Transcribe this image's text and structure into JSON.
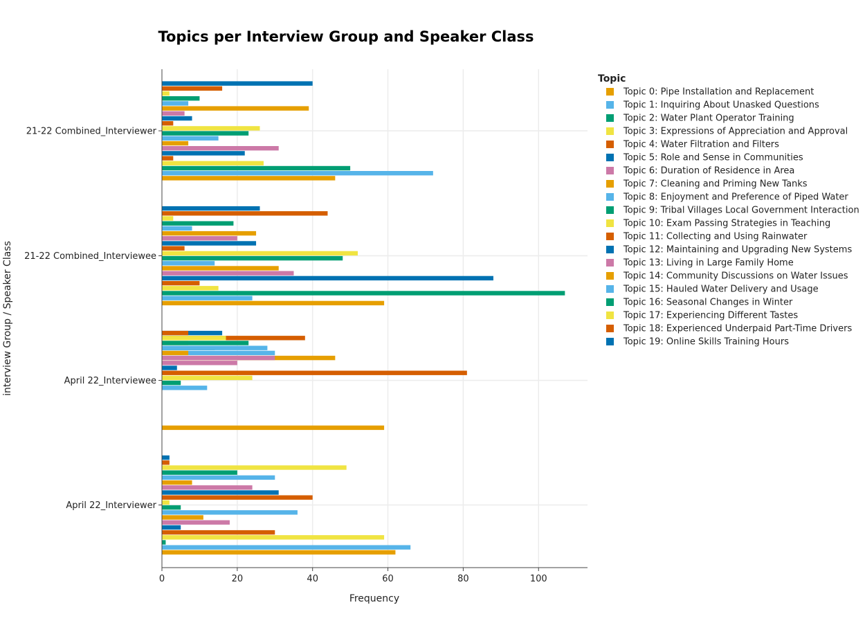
{
  "chart_data": {
    "type": "bar",
    "orientation": "horizontal",
    "title": "Topics per Interview Group and Speaker Class",
    "xlabel": "Frequency",
    "ylabel": "interview Group / Speaker Class",
    "xlim": [
      0,
      113
    ],
    "xticks": [
      0,
      20,
      40,
      60,
      80,
      100
    ],
    "grid": true,
    "legend_title": "Topic",
    "legend_position": "right",
    "categories": [
      "21-22 Combined_Interviewer",
      "21-22 Combined_Interviewee",
      "April 22_Interviewee",
      "April 22_Interviewer"
    ],
    "series": [
      {
        "name": "Topic 0: Pipe Installation and Replacement",
        "color": "#E69F00",
        "values": [
          46,
          59,
          59,
          62
        ]
      },
      {
        "name": "Topic 1: Inquiring About Unasked Questions",
        "color": "#56B4E9",
        "values": [
          72,
          24,
          0,
          66
        ]
      },
      {
        "name": "Topic 2: Water Plant Operator Training",
        "color": "#009E73",
        "values": [
          50,
          107,
          0,
          1
        ]
      },
      {
        "name": "Topic 3: Expressions of Appreciation and Approval",
        "color": "#F0E442",
        "values": [
          27,
          15,
          0,
          59
        ]
      },
      {
        "name": "Topic 4: Water Filtration and Filters",
        "color": "#D55E00",
        "values": [
          3,
          10,
          0,
          30
        ]
      },
      {
        "name": "Topic 5: Role and Sense in Communities",
        "color": "#0072B2",
        "values": [
          22,
          88,
          0,
          5
        ]
      },
      {
        "name": "Topic 6: Duration of Residence in Area",
        "color": "#CC79A7",
        "values": [
          31,
          35,
          0,
          18
        ]
      },
      {
        "name": "Topic 7: Cleaning and Priming New Tanks",
        "color": "#E69F00",
        "values": [
          7,
          31,
          0,
          11
        ]
      },
      {
        "name": "Topic 8: Enjoyment and Preference of Piped Water",
        "color": "#56B4E9",
        "values": [
          15,
          14,
          12,
          36
        ]
      },
      {
        "name": "Topic 9: Tribal Villages Local Government Interaction",
        "color": "#009E73",
        "values": [
          23,
          48,
          5,
          5
        ]
      },
      {
        "name": "Topic 10: Exam Passing Strategies in Teaching",
        "color": "#F0E442",
        "values": [
          26,
          52,
          24,
          2
        ]
      },
      {
        "name": "Topic 11: Collecting and Using Rainwater",
        "color": "#D55E00",
        "values": [
          3,
          6,
          81,
          40
        ]
      },
      {
        "name": "Topic 12: Maintaining and Upgrading New Systems",
        "color": "#0072B2",
        "values": [
          8,
          25,
          4,
          31
        ]
      },
      {
        "name": "Topic 13: Living in Large Family Home",
        "color": "#CC79A7",
        "values": [
          6,
          20,
          20,
          24
        ]
      },
      {
        "name": "Topic 14: Community Discussions on Water Issues",
        "color": "#E69F00",
        "values": [
          39,
          25,
          46,
          8
        ]
      },
      {
        "name": "Topic 15: Hauled Water Delivery and Usage",
        "color": "#56B4E9",
        "values": [
          7,
          8,
          30,
          30
        ]
      },
      {
        "name": "Topic 16: Seasonal Changes in Winter",
        "color": "#009E73",
        "values": [
          10,
          19,
          14,
          20
        ]
      },
      {
        "name": "Topic 17: Experiencing Different Tastes",
        "color": "#F0E442",
        "values": [
          2,
          3,
          7,
          49
        ]
      },
      {
        "name": "Topic 18: Experienced Underpaid Part-Time Drivers",
        "color": "#D55E00",
        "values": [
          16,
          44,
          38,
          2
        ]
      },
      {
        "name": "Topic 19: Online Skills Training Hours",
        "color": "#0072B2",
        "values": [
          40,
          26,
          16,
          2
        ]
      }
    ]
  },
  "extra_bars": [
    {
      "category": 2,
      "slot_from_top": 0,
      "color": "#D55E00",
      "value": 7
    },
    {
      "category": 2,
      "slot_from_top": 1,
      "color": "#F0E442",
      "value": 17
    },
    {
      "category": 2,
      "slot_from_top": 2,
      "color": "#009E73",
      "value": 23
    },
    {
      "category": 2,
      "slot_from_top": 3,
      "color": "#56B4E9",
      "value": 28
    },
    {
      "category": 2,
      "slot_from_top": 4,
      "color": "#E69F00",
      "value": 7
    },
    {
      "category": 2,
      "slot_from_top": 5,
      "color": "#CC79A7",
      "value": 30
    }
  ]
}
